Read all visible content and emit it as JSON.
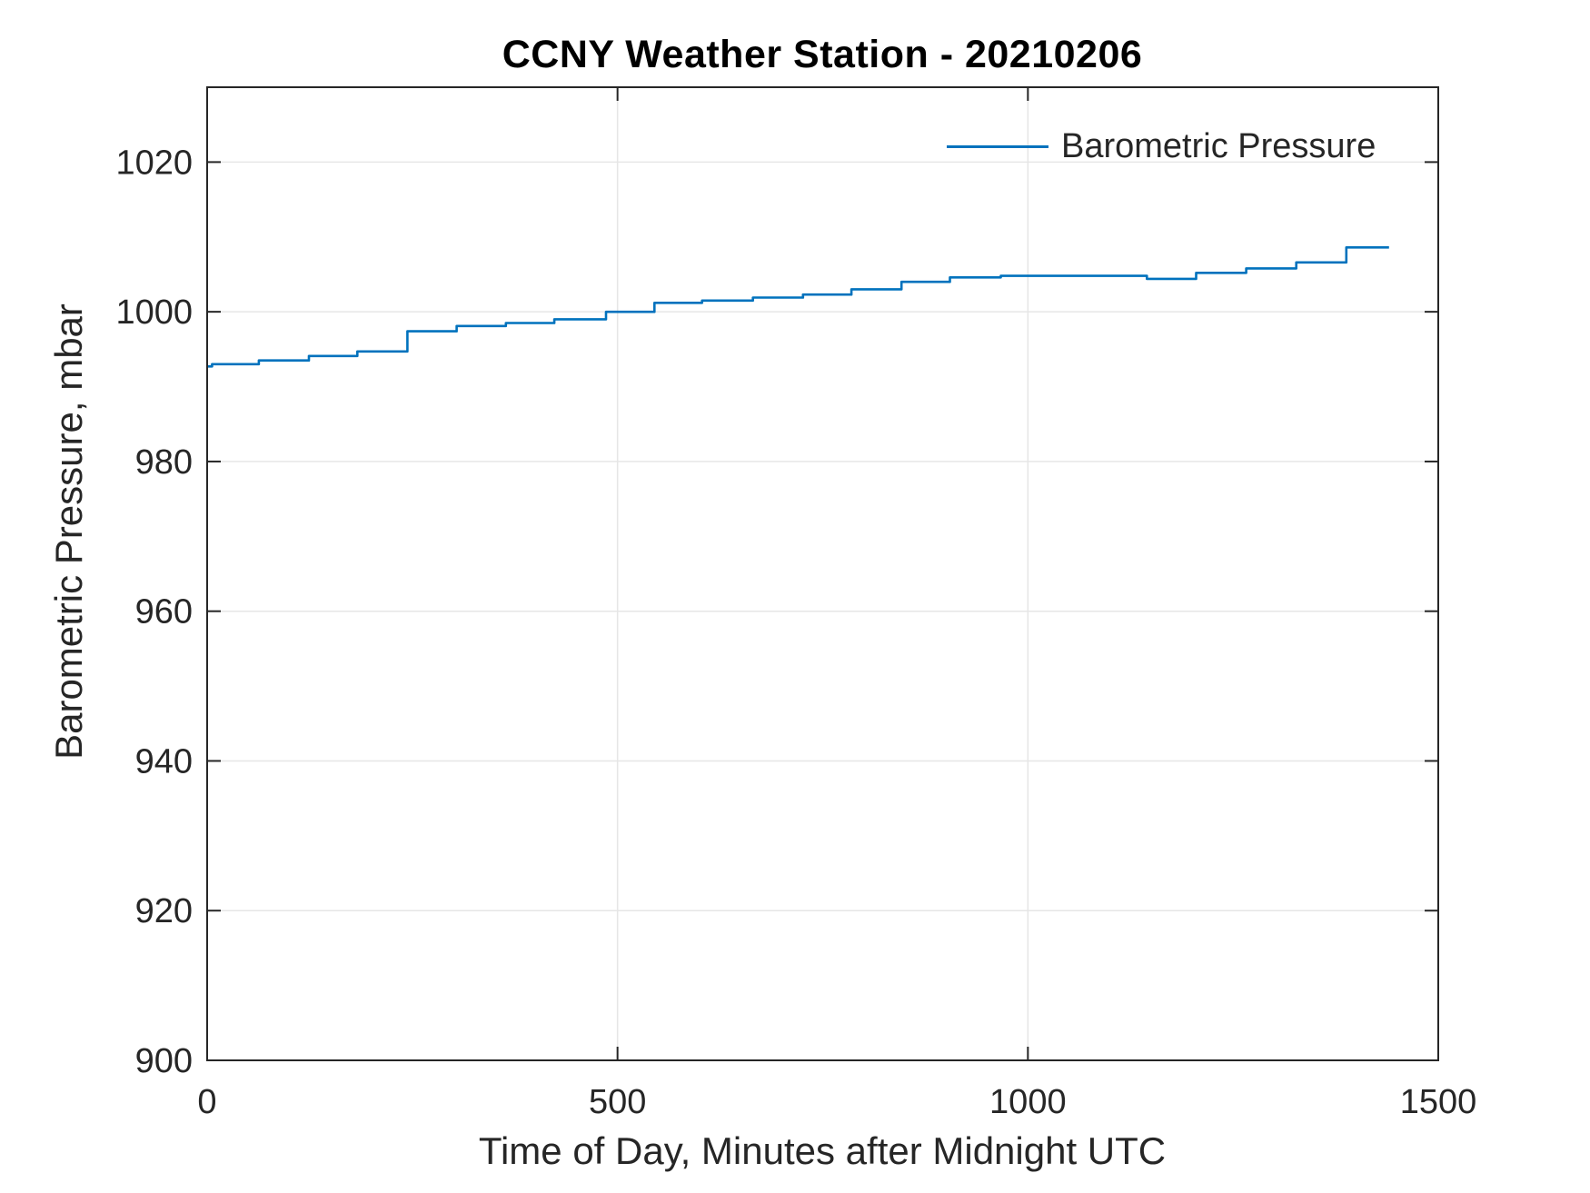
{
  "chart_data": {
    "type": "line",
    "title": "CCNY Weather Station - 20210206",
    "xlabel": "Time of Day, Minutes after Midnight UTC",
    "ylabel": "Barometric Pressure, mbar",
    "xlim": [
      0,
      1500
    ],
    "ylim": [
      900,
      1030
    ],
    "xticks": [
      0,
      500,
      1000,
      1500
    ],
    "yticks": [
      900,
      920,
      940,
      960,
      980,
      1000,
      1020
    ],
    "grid": true,
    "legend": {
      "label": "Barometric Pressure",
      "position": "top-right-inside",
      "frame": false
    },
    "colors": {
      "line": "#0072BD",
      "axis": "#262626",
      "grid": "#E6E6E6",
      "background": "#FFFFFF"
    },
    "series": [
      {
        "name": "Barometric Pressure",
        "style": "step-after",
        "units": "mbar",
        "points": [
          [
            0,
            992.7
          ],
          [
            6,
            993.0
          ],
          [
            63,
            993.5
          ],
          [
            124,
            994.1
          ],
          [
            183,
            994.7
          ],
          [
            244,
            997.4
          ],
          [
            304,
            998.1
          ],
          [
            364,
            998.5
          ],
          [
            423,
            999.0
          ],
          [
            486,
            1000.0
          ],
          [
            545,
            1001.2
          ],
          [
            603,
            1001.5
          ],
          [
            665,
            1001.9
          ],
          [
            726,
            1002.3
          ],
          [
            785,
            1003.0
          ],
          [
            846,
            1004.0
          ],
          [
            905,
            1004.6
          ],
          [
            967,
            1004.8
          ],
          [
            1145,
            1004.4
          ],
          [
            1205,
            1005.2
          ],
          [
            1266,
            1005.8
          ],
          [
            1327,
            1006.6
          ],
          [
            1388,
            1008.6
          ],
          [
            1440,
            1008.6
          ]
        ]
      }
    ]
  }
}
